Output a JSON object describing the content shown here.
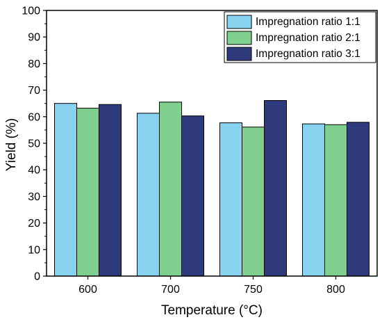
{
  "chart_data": {
    "type": "bar",
    "categories": [
      "600",
      "700",
      "750",
      "800"
    ],
    "series": [
      {
        "name": "Impregnation ratio 1:1",
        "color": "#87d3ef",
        "values": [
          65.0,
          61.3,
          57.7,
          57.3
        ]
      },
      {
        "name": "Impregnation ratio 2:1",
        "color": "#7fd08f",
        "values": [
          63.2,
          65.5,
          56.1,
          57.0
        ]
      },
      {
        "name": "Impregnation ratio 3:1",
        "color": "#2e3a7c",
        "values": [
          64.6,
          60.3,
          66.1,
          57.9
        ]
      }
    ],
    "xlabel": "Temperature (°C)",
    "ylabel": "Yield (%)",
    "ylim": [
      0,
      100
    ],
    "yticks": [
      "0",
      "10",
      "20",
      "30",
      "40",
      "50",
      "60",
      "70",
      "80",
      "90",
      "100"
    ],
    "grid": false,
    "legend_position": "top-right"
  }
}
